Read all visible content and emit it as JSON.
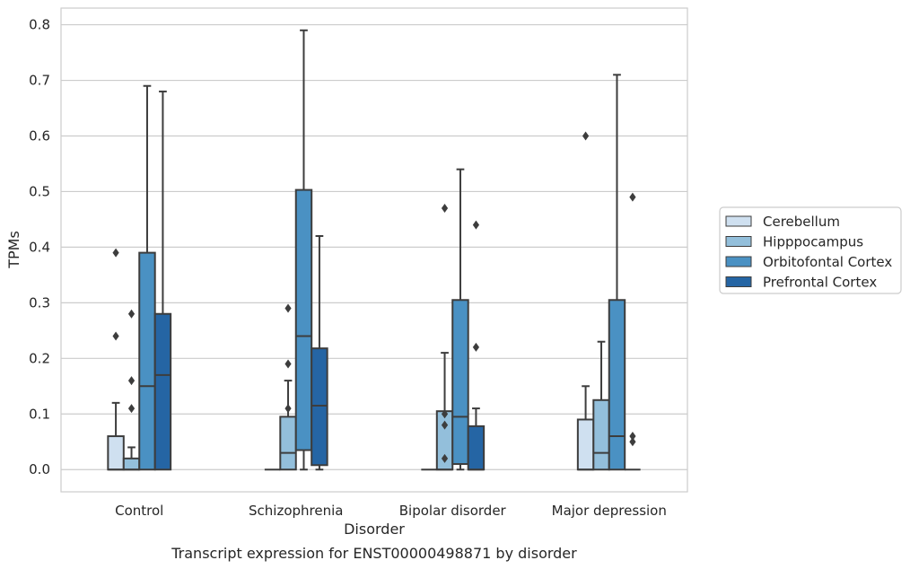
{
  "chart_data": {
    "type": "box",
    "title": "",
    "caption": "Transcript expression for ENST00000498871 by disorder",
    "xlabel": "Disorder",
    "ylabel": "TPMs",
    "ylim": [
      -0.04,
      0.83
    ],
    "yticks": [
      0.0,
      0.1,
      0.2,
      0.3,
      0.4,
      0.5,
      0.6,
      0.7,
      0.8
    ],
    "ytick_labels": [
      "0.0",
      "0.1",
      "0.2",
      "0.3",
      "0.4",
      "0.5",
      "0.6",
      "0.7",
      "0.8"
    ],
    "grid": "horizontal",
    "legend_position": "right",
    "categories": [
      "Control",
      "Schizophrenia",
      "Bipolar disorder",
      "Major depression"
    ],
    "series": [
      {
        "name": "Cerebellum",
        "color": "#cfe0f0",
        "boxes": [
          {
            "whisker_low": 0.0,
            "q1": 0.0,
            "median": 0.0,
            "q3": 0.06,
            "whisker_high": 0.12,
            "outliers": [
              0.24,
              0.39
            ]
          },
          {
            "whisker_low": 0.0,
            "q1": 0.0,
            "median": 0.0,
            "q3": 0.0,
            "whisker_high": 0.0,
            "outliers": []
          },
          {
            "whisker_low": 0.0,
            "q1": 0.0,
            "median": 0.0,
            "q3": 0.0,
            "whisker_high": 0.0,
            "outliers": []
          },
          {
            "whisker_low": 0.0,
            "q1": 0.0,
            "median": 0.0,
            "q3": 0.09,
            "whisker_high": 0.15,
            "outliers": [
              0.6
            ]
          }
        ]
      },
      {
        "name": "Hipppocampus",
        "color": "#93bfdb",
        "boxes": [
          {
            "whisker_low": 0.0,
            "q1": 0.0,
            "median": 0.0,
            "q3": 0.02,
            "whisker_high": 0.04,
            "outliers": [
              0.11,
              0.16,
              0.28
            ]
          },
          {
            "whisker_low": 0.0,
            "q1": 0.0,
            "median": 0.03,
            "q3": 0.095,
            "whisker_high": 0.16,
            "outliers": [
              0.11,
              0.19,
              0.29
            ]
          },
          {
            "whisker_low": 0.0,
            "q1": 0.0,
            "median": 0.0,
            "q3": 0.105,
            "whisker_high": 0.21,
            "outliers": [
              0.02,
              0.08,
              0.1,
              0.47
            ]
          },
          {
            "whisker_low": 0.0,
            "q1": 0.0,
            "median": 0.03,
            "q3": 0.125,
            "whisker_high": 0.23,
            "outliers": []
          }
        ]
      },
      {
        "name": "Orbitofontal Cortex",
        "color": "#4a91c3",
        "boxes": [
          {
            "whisker_low": 0.0,
            "q1": 0.0,
            "median": 0.15,
            "q3": 0.39,
            "whisker_high": 0.69,
            "outliers": []
          },
          {
            "whisker_low": 0.0,
            "q1": 0.035,
            "median": 0.24,
            "q3": 0.503,
            "whisker_high": 0.79,
            "outliers": []
          },
          {
            "whisker_low": 0.0,
            "q1": 0.01,
            "median": 0.095,
            "q3": 0.305,
            "whisker_high": 0.54,
            "outliers": []
          },
          {
            "whisker_low": 0.0,
            "q1": 0.0,
            "median": 0.06,
            "q3": 0.305,
            "whisker_high": 0.71,
            "outliers": []
          }
        ]
      },
      {
        "name": "Prefrontal Cortex",
        "color": "#2565a4",
        "boxes": [
          {
            "whisker_low": 0.0,
            "q1": 0.0,
            "median": 0.17,
            "q3": 0.28,
            "whisker_high": 0.68,
            "outliers": []
          },
          {
            "whisker_low": 0.0,
            "q1": 0.008,
            "median": 0.115,
            "q3": 0.218,
            "whisker_high": 0.42,
            "outliers": []
          },
          {
            "whisker_low": 0.0,
            "q1": 0.0,
            "median": 0.0,
            "q3": 0.078,
            "whisker_high": 0.11,
            "outliers": [
              0.22,
              0.44
            ]
          },
          {
            "whisker_low": 0.0,
            "q1": 0.0,
            "median": 0.0,
            "q3": 0.0,
            "whisker_high": 0.0,
            "outliers": [
              0.05,
              0.06,
              0.49
            ]
          }
        ]
      }
    ]
  }
}
